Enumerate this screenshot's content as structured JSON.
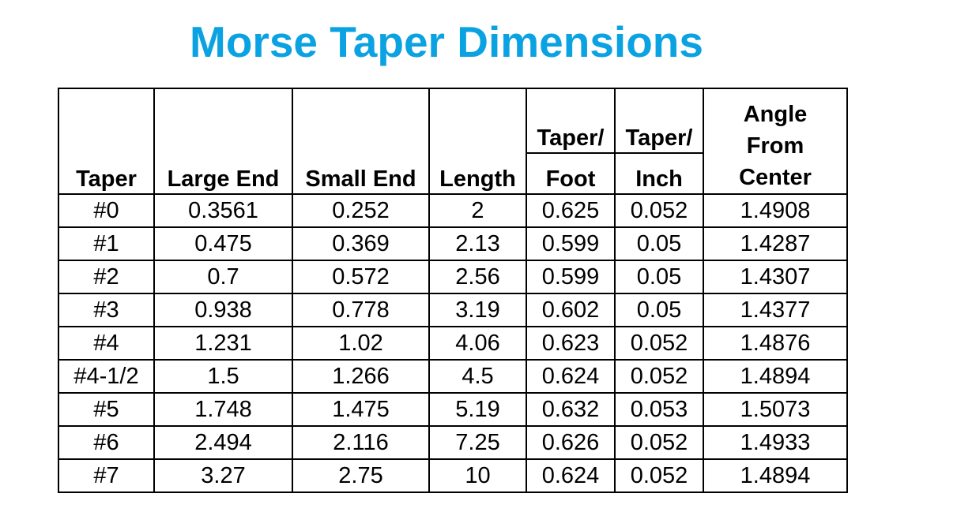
{
  "title": "Morse Taper Dimensions",
  "table": {
    "headers": {
      "taper": "Taper",
      "large_end": "Large End",
      "small_end": "Small End",
      "length": "Length",
      "taper_foot_top": "Taper/",
      "taper_foot_bottom": "Foot",
      "taper_inch_top": "Taper/",
      "taper_inch_bottom": "Inch",
      "angle": "Angle\nFrom\nCenter"
    },
    "rows": [
      [
        "#0",
        "0.3561",
        "0.252",
        "2",
        "0.625",
        "0.052",
        "1.4908"
      ],
      [
        "#1",
        "0.475",
        "0.369",
        "2.13",
        "0.599",
        "0.05",
        "1.4287"
      ],
      [
        "#2",
        "0.7",
        "0.572",
        "2.56",
        "0.599",
        "0.05",
        "1.4307"
      ],
      [
        "#3",
        "0.938",
        "0.778",
        "3.19",
        "0.602",
        "0.05",
        "1.4377"
      ],
      [
        "#4",
        "1.231",
        "1.02",
        "4.06",
        "0.623",
        "0.052",
        "1.4876"
      ],
      [
        "#4-1/2",
        "1.5",
        "1.266",
        "4.5",
        "0.624",
        "0.052",
        "1.4894"
      ],
      [
        "#5",
        "1.748",
        "1.475",
        "5.19",
        "0.632",
        "0.053",
        "1.5073"
      ],
      [
        "#6",
        "2.494",
        "2.116",
        "7.25",
        "0.626",
        "0.052",
        "1.4933"
      ],
      [
        "#7",
        "3.27",
        "2.75",
        "10",
        "0.624",
        "0.052",
        "1.4894"
      ]
    ]
  }
}
